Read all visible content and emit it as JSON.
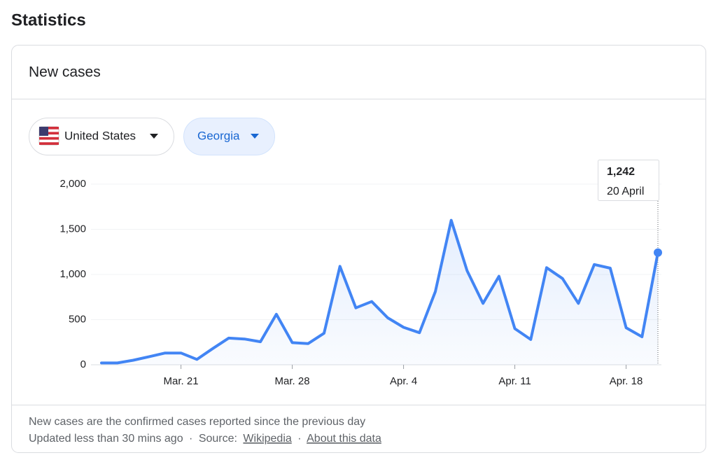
{
  "page_title": "Statistics",
  "card_title": "New cases",
  "filters": {
    "country": "United States",
    "region": "Georgia"
  },
  "chart_data": {
    "type": "line",
    "categories": [
      null,
      null,
      null,
      null,
      null,
      "Mar. 21",
      null,
      null,
      null,
      null,
      null,
      null,
      "Mar. 28",
      null,
      null,
      null,
      null,
      null,
      null,
      "Apr. 4",
      null,
      null,
      null,
      null,
      null,
      null,
      "Apr. 11",
      null,
      null,
      null,
      null,
      null,
      null,
      "Apr. 18",
      null,
      null
    ],
    "series": [
      {
        "name": "New cases",
        "color": "#4285f4",
        "values": [
          20,
          20,
          50,
          90,
          130,
          130,
          60,
          180,
          295,
          285,
          255,
          560,
          245,
          235,
          350,
          1090,
          630,
          700,
          520,
          415,
          355,
          810,
          1600,
          1040,
          680,
          980,
          400,
          280,
          1075,
          955,
          680,
          1110,
          1070,
          410,
          310,
          1242
        ]
      }
    ],
    "ylim": [
      0,
      2000
    ],
    "yticks": [
      0,
      500,
      {
        "value": 1000,
        "label": "1,000"
      },
      {
        "value": 1500,
        "label": "1,500"
      },
      {
        "value": 2000,
        "label": "2,000"
      }
    ],
    "grid": true,
    "tooltip": {
      "label": "1,242",
      "date": "20 April"
    }
  },
  "footer": {
    "note": "New cases are the confirmed cases reported since the previous day",
    "updated": "Updated less than 30 mins ago",
    "separator": "·",
    "source_label": "Source:",
    "source_link": "Wikipedia",
    "about_link": "About this data"
  }
}
